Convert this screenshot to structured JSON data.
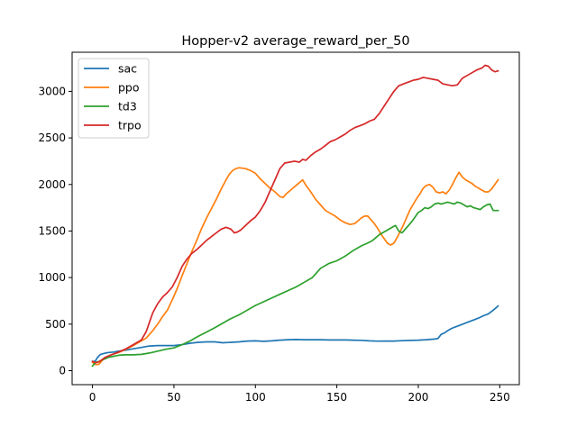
{
  "chart_data": {
    "type": "line",
    "title": "Hopper-v2 average_reward_per_50",
    "xlabel": "",
    "ylabel": "",
    "xlim": [
      -12.5,
      262
    ],
    "ylim": [
      -150,
      3420
    ],
    "xticks": [
      0,
      50,
      100,
      150,
      200,
      250
    ],
    "yticks": [
      0,
      500,
      1000,
      1500,
      2000,
      2500,
      3000
    ],
    "legend_position": "top-left",
    "grid": false,
    "series": [
      {
        "name": "sac",
        "color": "#1f77b4",
        "x": [
          0,
          1,
          2,
          3,
          4,
          5,
          6,
          8,
          10,
          13,
          16,
          20,
          25,
          30,
          35,
          40,
          45,
          50,
          55,
          60,
          65,
          70,
          75,
          80,
          85,
          90,
          95,
          100,
          105,
          110,
          115,
          120,
          125,
          130,
          135,
          140,
          145,
          150,
          155,
          160,
          165,
          170,
          175,
          180,
          185,
          190,
          195,
          200,
          205,
          210,
          212,
          214,
          216,
          218,
          220,
          222,
          225,
          228,
          231,
          234,
          237,
          240,
          243,
          246,
          249
        ],
        "y": [
          100,
          100,
          110,
          140,
          160,
          175,
          180,
          190,
          195,
          200,
          210,
          220,
          235,
          250,
          265,
          270,
          270,
          270,
          280,
          295,
          305,
          310,
          310,
          300,
          305,
          310,
          318,
          320,
          315,
          320,
          328,
          333,
          335,
          333,
          333,
          333,
          330,
          330,
          330,
          328,
          326,
          320,
          317,
          318,
          318,
          322,
          325,
          328,
          333,
          340,
          345,
          390,
          405,
          430,
          450,
          465,
          485,
          505,
          525,
          545,
          565,
          590,
          610,
          650,
          695
        ]
      },
      {
        "name": "ppo",
        "color": "#ff7f0e",
        "x": [
          0,
          2,
          4,
          6,
          8,
          10,
          12,
          15,
          18,
          21,
          24,
          27,
          30,
          33,
          35,
          37,
          40,
          43,
          46,
          49,
          52,
          55,
          58,
          61,
          64,
          67,
          70,
          73,
          76,
          79,
          82,
          84,
          86,
          88,
          90,
          92,
          94,
          97,
          100,
          103,
          106,
          109,
          112,
          115,
          117,
          119,
          121,
          123,
          125,
          127,
          129,
          131,
          134,
          137,
          140,
          143,
          146,
          149,
          152,
          155,
          158,
          161,
          163,
          165,
          167,
          169,
          171,
          173,
          175,
          177,
          179,
          181,
          183,
          185,
          187,
          189,
          191,
          193,
          195,
          197,
          199,
          201,
          203,
          205,
          207,
          209,
          211,
          213,
          215,
          217,
          219,
          221,
          223,
          225,
          227,
          229,
          231,
          233,
          235,
          237,
          239,
          241,
          243,
          245,
          247,
          249
        ],
        "y": [
          90,
          65,
          70,
          110,
          140,
          160,
          175,
          190,
          210,
          235,
          260,
          290,
          320,
          350,
          390,
          430,
          500,
          580,
          650,
          760,
          880,
          1020,
          1150,
          1280,
          1400,
          1530,
          1640,
          1740,
          1840,
          1950,
          2050,
          2110,
          2150,
          2170,
          2180,
          2175,
          2170,
          2150,
          2120,
          2060,
          2010,
          1960,
          1920,
          1870,
          1860,
          1900,
          1930,
          1960,
          1990,
          2020,
          2050,
          1990,
          1920,
          1840,
          1780,
          1720,
          1690,
          1660,
          1620,
          1590,
          1570,
          1580,
          1610,
          1640,
          1660,
          1660,
          1620,
          1580,
          1530,
          1470,
          1420,
          1370,
          1350,
          1370,
          1430,
          1500,
          1570,
          1650,
          1730,
          1790,
          1850,
          1900,
          1960,
          1990,
          2000,
          1970,
          1920,
          1910,
          1920,
          1900,
          1940,
          2000,
          2070,
          2130,
          2080,
          2050,
          2030,
          2010,
          1980,
          1960,
          1940,
          1920,
          1920,
          1950,
          2000,
          2050
        ]
      },
      {
        "name": "td3",
        "color": "#2ca02c",
        "x": [
          0,
          2,
          4,
          6,
          8,
          10,
          13,
          16,
          20,
          25,
          30,
          35,
          40,
          45,
          50,
          55,
          60,
          65,
          70,
          75,
          80,
          85,
          90,
          95,
          100,
          105,
          110,
          115,
          120,
          125,
          130,
          135,
          140,
          145,
          150,
          155,
          160,
          165,
          170,
          172,
          174,
          176,
          178,
          180,
          182,
          184,
          186,
          188,
          190,
          192,
          194,
          196,
          198,
          200,
          202,
          204,
          206,
          208,
          210,
          212,
          214,
          216,
          218,
          220,
          222,
          224,
          226,
          228,
          230,
          232,
          234,
          236,
          238,
          240,
          242,
          244,
          246,
          249
        ],
        "y": [
          50,
          90,
          100,
          115,
          130,
          145,
          155,
          165,
          170,
          170,
          175,
          190,
          210,
          230,
          245,
          280,
          320,
          370,
          415,
          460,
          510,
          560,
          600,
          650,
          700,
          740,
          780,
          820,
          860,
          900,
          950,
          1000,
          1100,
          1150,
          1180,
          1230,
          1290,
          1340,
          1380,
          1400,
          1430,
          1460,
          1480,
          1500,
          1520,
          1540,
          1560,
          1500,
          1480,
          1520,
          1560,
          1600,
          1650,
          1700,
          1720,
          1750,
          1740,
          1760,
          1790,
          1800,
          1790,
          1800,
          1810,
          1800,
          1790,
          1810,
          1800,
          1780,
          1760,
          1770,
          1750,
          1740,
          1730,
          1760,
          1780,
          1790,
          1720,
          1720
        ]
      },
      {
        "name": "trpo",
        "color": "#d62728",
        "x": [
          0,
          2,
          4,
          6,
          8,
          10,
          13,
          16,
          20,
          25,
          30,
          33,
          35,
          37,
          40,
          43,
          46,
          49,
          52,
          55,
          58,
          61,
          64,
          67,
          70,
          73,
          76,
          79,
          82,
          85,
          87,
          89,
          91,
          94,
          97,
          100,
          103,
          106,
          109,
          112,
          115,
          118,
          121,
          124,
          127,
          129,
          131,
          134,
          137,
          140,
          143,
          146,
          149,
          152,
          155,
          158,
          161,
          164,
          167,
          170,
          173,
          176,
          179,
          182,
          185,
          188,
          191,
          194,
          197,
          200,
          203,
          206,
          209,
          212,
          215,
          218,
          221,
          224,
          227,
          230,
          233,
          236,
          239,
          241,
          243,
          245,
          247,
          249
        ],
        "y": [
          100,
          85,
          95,
          120,
          145,
          160,
          180,
          200,
          230,
          280,
          330,
          420,
          520,
          620,
          720,
          790,
          840,
          900,
          1000,
          1120,
          1200,
          1260,
          1300,
          1350,
          1400,
          1440,
          1480,
          1520,
          1540,
          1520,
          1480,
          1490,
          1510,
          1560,
          1610,
          1650,
          1720,
          1810,
          1930,
          2050,
          2170,
          2230,
          2240,
          2250,
          2240,
          2270,
          2260,
          2310,
          2350,
          2380,
          2420,
          2460,
          2480,
          2510,
          2540,
          2580,
          2610,
          2630,
          2650,
          2680,
          2700,
          2760,
          2840,
          2920,
          3000,
          3060,
          3080,
          3100,
          3120,
          3130,
          3150,
          3140,
          3130,
          3120,
          3080,
          3070,
          3060,
          3070,
          3140,
          3170,
          3200,
          3230,
          3250,
          3280,
          3270,
          3230,
          3210,
          3220
        ]
      }
    ]
  }
}
